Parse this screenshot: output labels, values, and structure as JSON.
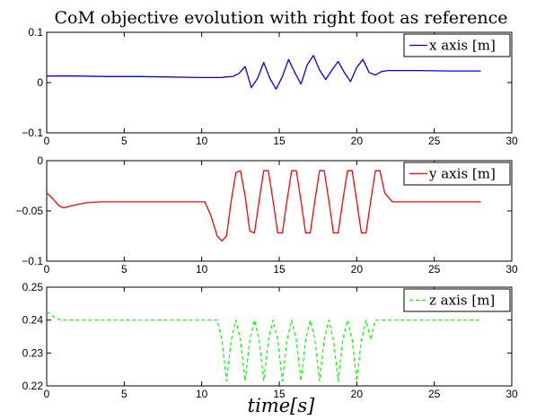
{
  "chart_data": {
    "title": "CoM objective evolution with right foot as reference",
    "xlabel": "time[s]",
    "panels": [
      {
        "type": "line",
        "xlim": [
          0,
          30
        ],
        "ylim": [
          -0.1,
          0.1
        ],
        "xticks": [
          "0",
          "5",
          "10",
          "15",
          "20",
          "25",
          "30"
        ],
        "yticks": [
          "0.1",
          "0",
          "−0.1"
        ],
        "series": [
          {
            "name": "x axis [m]",
            "color": "#0000ff",
            "style": "solid",
            "x": [
              0,
              2,
              4,
              6,
              8,
              10,
              11.3,
              11.5,
              12.0,
              12.4,
              12.8,
              13.2,
              13.6,
              14.0,
              14.4,
              14.8,
              15.2,
              15.6,
              16.0,
              16.4,
              16.8,
              17.2,
              17.6,
              18.0,
              18.4,
              18.8,
              19.2,
              19.6,
              20.0,
              20.4,
              20.8,
              21.2,
              21.6,
              22.0,
              24,
              26,
              28
            ],
            "y": [
              0.013,
              0.013,
              0.012,
              0.012,
              0.011,
              0.01,
              0.01,
              0.011,
              0.012,
              0.018,
              0.032,
              -0.01,
              0.008,
              0.04,
              0.008,
              -0.013,
              0.012,
              0.046,
              0.02,
              -0.003,
              0.035,
              0.054,
              0.025,
              0.006,
              0.025,
              0.042,
              0.02,
              0.002,
              0.03,
              0.046,
              0.02,
              0.015,
              0.022,
              0.024,
              0.024,
              0.023,
              0.023
            ]
          }
        ]
      },
      {
        "type": "line",
        "xlim": [
          0,
          30
        ],
        "ylim": [
          -0.1,
          0
        ],
        "xticks": [
          "0",
          "5",
          "10",
          "15",
          "20",
          "25",
          "30"
        ],
        "yticks": [
          "0",
          "−0.05",
          "−0.1"
        ],
        "series": [
          {
            "name": "y axis [m]",
            "color": "#ff0000",
            "style": "solid",
            "x": [
              0,
              0.4,
              0.8,
              1.1,
              1.6,
              2.5,
              3.5,
              6,
              9,
              10.2,
              10.6,
              11.0,
              11.3,
              11.6,
              11.9,
              12.2,
              12.5,
              12.8,
              13.1,
              13.4,
              13.7,
              14.0,
              14.3,
              14.6,
              14.9,
              15.2,
              15.5,
              15.8,
              16.1,
              16.4,
              16.7,
              17.0,
              17.3,
              17.6,
              17.9,
              18.2,
              18.5,
              18.8,
              19.1,
              19.4,
              19.7,
              20.0,
              20.3,
              20.6,
              20.9,
              21.2,
              21.5,
              21.8,
              22.3,
              25,
              28
            ],
            "y": [
              -0.032,
              -0.038,
              -0.045,
              -0.047,
              -0.045,
              -0.042,
              -0.041,
              -0.041,
              -0.041,
              -0.041,
              -0.055,
              -0.075,
              -0.08,
              -0.075,
              -0.04,
              -0.012,
              -0.01,
              -0.035,
              -0.07,
              -0.072,
              -0.04,
              -0.01,
              -0.01,
              -0.04,
              -0.072,
              -0.072,
              -0.04,
              -0.01,
              -0.01,
              -0.04,
              -0.072,
              -0.072,
              -0.04,
              -0.01,
              -0.01,
              -0.04,
              -0.072,
              -0.072,
              -0.04,
              -0.01,
              -0.01,
              -0.04,
              -0.072,
              -0.072,
              -0.04,
              -0.01,
              -0.01,
              -0.032,
              -0.041,
              -0.041,
              -0.041
            ]
          }
        ]
      },
      {
        "type": "line",
        "xlim": [
          0,
          30
        ],
        "ylim": [
          0.22,
          0.25
        ],
        "xticks": [
          "0",
          "5",
          "10",
          "15",
          "20",
          "25",
          "30"
        ],
        "yticks": [
          "0.25",
          "0.24",
          "0.23",
          "0.22"
        ],
        "series": [
          {
            "name": "z axis [m]",
            "color": "#00ff00",
            "style": "dashed",
            "x": [
              0,
              0.2,
              0.5,
              0.9,
              1.3,
              5,
              11.0,
              11.3,
              11.6,
              11.9,
              12.2,
              12.5,
              12.8,
              13.1,
              13.4,
              13.7,
              14.0,
              14.3,
              14.6,
              14.9,
              15.2,
              15.5,
              15.8,
              16.1,
              16.4,
              16.7,
              17.0,
              17.3,
              17.6,
              17.9,
              18.2,
              18.5,
              18.8,
              19.1,
              19.4,
              19.7,
              20.0,
              20.3,
              20.6,
              20.9,
              21.2,
              28
            ],
            "y": [
              0.2425,
              0.242,
              0.2408,
              0.24,
              0.24,
              0.24,
              0.24,
              0.234,
              0.2215,
              0.234,
              0.24,
              0.234,
              0.2215,
              0.234,
              0.24,
              0.234,
              0.2215,
              0.234,
              0.24,
              0.234,
              0.2215,
              0.234,
              0.24,
              0.234,
              0.2215,
              0.234,
              0.24,
              0.234,
              0.2215,
              0.234,
              0.24,
              0.234,
              0.2215,
              0.234,
              0.24,
              0.234,
              0.2215,
              0.234,
              0.24,
              0.234,
              0.24,
              0.24
            ]
          }
        ]
      }
    ]
  }
}
